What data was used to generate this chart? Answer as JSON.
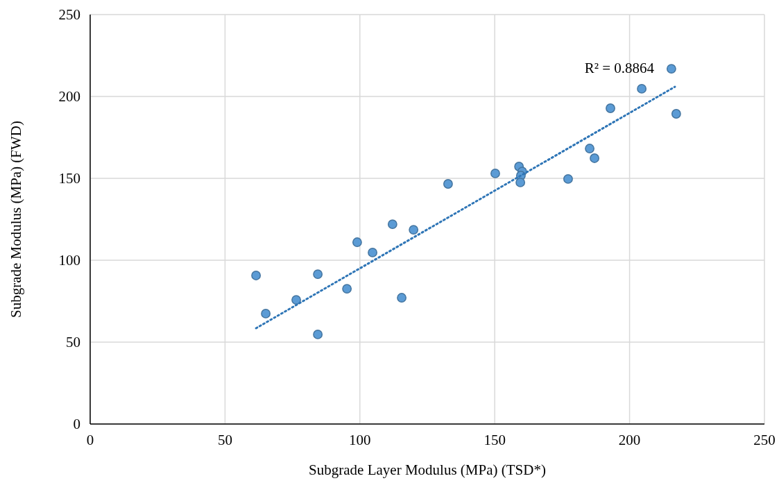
{
  "chart_data": {
    "type": "scatter",
    "xlabel": "Subgrade Layer Modulus (MPa) (TSD*)",
    "ylabel": "Subgrade Modulus (MPa) (FWD)",
    "xlim": [
      0,
      250
    ],
    "ylim": [
      0,
      250
    ],
    "xticks": [
      0,
      50,
      100,
      150,
      200,
      250
    ],
    "yticks": [
      0,
      50,
      100,
      150,
      200,
      250
    ],
    "grid": true,
    "marker": "circle",
    "annotations": [
      "R² = 0.8864"
    ],
    "series": [
      {
        "color": "#5b9bd5",
        "x": [
          61.5,
          65.1,
          76.4,
          84.4,
          84.4,
          95.2,
          99.0,
          104.7,
          112.1,
          115.5,
          119.9,
          132.7,
          150.2,
          159.0,
          160.2,
          159.7,
          159.5,
          177.2,
          185.2,
          187.0,
          192.9,
          204.5,
          215.5,
          217.3
        ],
        "values": [
          90.7,
          67.4,
          75.8,
          91.5,
          54.7,
          82.6,
          111.0,
          104.7,
          122.0,
          77.1,
          118.6,
          146.6,
          153.0,
          157.2,
          154.2,
          151.7,
          147.5,
          149.6,
          168.2,
          162.3,
          192.8,
          204.7,
          216.9,
          189.4
        ]
      },
      {
        "type": "line",
        "color": "#2e75b6",
        "line_style": "dotted",
        "marker": "none",
        "x": [
          61.5,
          216.8
        ],
        "values": [
          58.5,
          205.9
        ]
      }
    ]
  }
}
